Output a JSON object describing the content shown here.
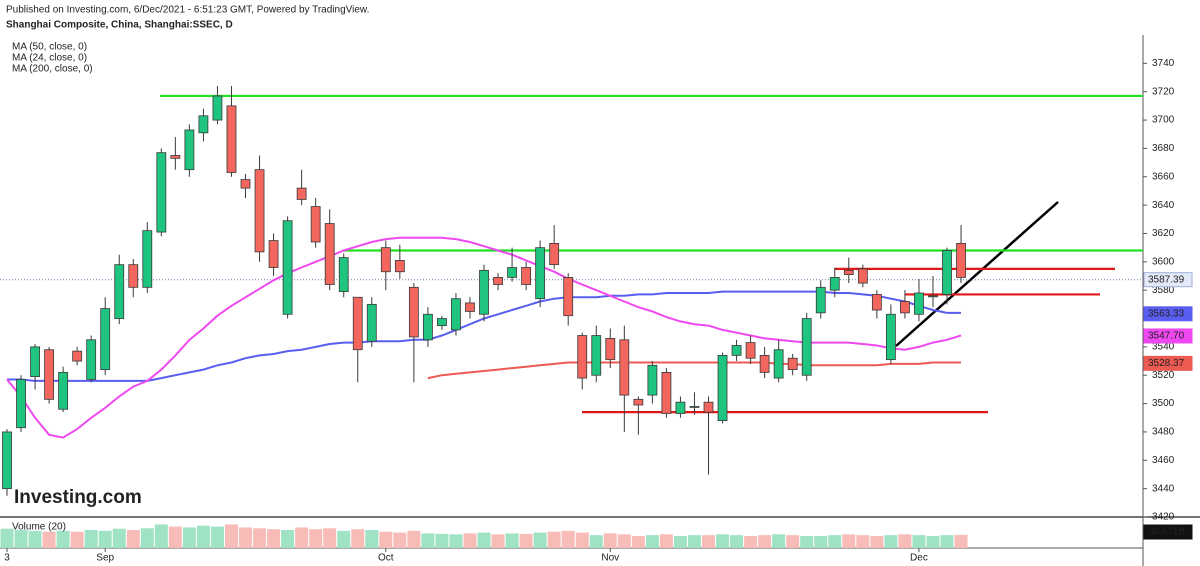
{
  "header": {
    "published": "Published on Investing.com, 6/Dec/2021 - 6:51:23 GMT, Powered by TradingView.",
    "instrument": "Shanghai Composite, China, Shanghai:SSEC, D"
  },
  "logo": "Investing.com",
  "chart_data": {
    "type": "candlestick",
    "categories": [
      "3",
      null,
      null,
      null,
      null,
      null,
      null,
      "Sep",
      null,
      null,
      null,
      null,
      null,
      null,
      null,
      null,
      null,
      null,
      null,
      null,
      null,
      null,
      null,
      null,
      null,
      null,
      null,
      "Oct",
      null,
      null,
      null,
      null,
      null,
      null,
      null,
      null,
      null,
      null,
      null,
      null,
      null,
      null,
      null,
      "Nov",
      null,
      null,
      null,
      null,
      null,
      null,
      null,
      null,
      null,
      null,
      null,
      null,
      null,
      null,
      null,
      null,
      null,
      null,
      null,
      null,
      null,
      "Dec",
      null,
      null,
      null
    ],
    "open": [
      3440,
      3483,
      3519,
      3538,
      3496,
      3537,
      3517,
      3524,
      3560,
      3598,
      3582,
      3621,
      3675,
      3665,
      3691,
      3700,
      3710,
      3658,
      3665,
      3615,
      3563,
      3652,
      3639,
      3627,
      3579,
      3575,
      3544,
      3610,
      3601,
      3582,
      3545,
      3555,
      3552,
      3571,
      3563,
      3589,
      3589,
      3596,
      3574,
      3613,
      3589,
      3548,
      3520,
      3546,
      3545,
      3503,
      3506,
      3522,
      3493,
      3498,
      3501,
      3488,
      3534,
      3543,
      3534,
      3518,
      3532,
      3520,
      3564,
      3580,
      3594,
      3595,
      3577,
      3531,
      3572,
      3563,
      3576,
      3577,
      3613
    ],
    "high": [
      3482,
      3520,
      3542,
      3540,
      3526,
      3540,
      3548,
      3575,
      3605,
      3602,
      3628,
      3680,
      3688,
      3697,
      3708,
      3724,
      3724,
      3662,
      3675,
      3620,
      3632,
      3665,
      3645,
      3637,
      3606,
      3575,
      3575,
      3615,
      3612,
      3585,
      3568,
      3562,
      3578,
      3575,
      3598,
      3592,
      3610,
      3600,
      3615,
      3626,
      3592,
      3550,
      3555,
      3553,
      3555,
      3505,
      3530,
      3525,
      3505,
      3508,
      3505,
      3536,
      3545,
      3548,
      3540,
      3545,
      3535,
      3564,
      3587,
      3596,
      3603,
      3598,
      3580,
      3570,
      3580,
      3588,
      3590,
      3610,
      3626
    ],
    "low": [
      3435,
      3480,
      3510,
      3500,
      3494,
      3527,
      3515,
      3520,
      3556,
      3575,
      3578,
      3618,
      3665,
      3660,
      3685,
      3697,
      3660,
      3645,
      3600,
      3590,
      3560,
      3640,
      3610,
      3580,
      3575,
      3515,
      3540,
      3580,
      3588,
      3515,
      3540,
      3552,
      3548,
      3560,
      3558,
      3580,
      3586,
      3580,
      3568,
      3595,
      3555,
      3510,
      3515,
      3525,
      3480,
      3478,
      3500,
      3490,
      3490,
      3492,
      3450,
      3486,
      3530,
      3528,
      3518,
      3515,
      3520,
      3516,
      3560,
      3575,
      3585,
      3582,
      3560,
      3528,
      3560,
      3558,
      3568,
      3570,
      3585
    ],
    "close": [
      3480,
      3517,
      3540,
      3503,
      3522,
      3530,
      3545,
      3567,
      3598,
      3582,
      3622,
      3677,
      3673,
      3693,
      3703,
      3717,
      3663,
      3652,
      3607,
      3596,
      3629,
      3644,
      3614,
      3584,
      3603,
      3538,
      3570,
      3593,
      3593,
      3547,
      3563,
      3560,
      3574,
      3565,
      3594,
      3584,
      3596,
      3584,
      3610,
      3598,
      3562,
      3518,
      3548,
      3531,
      3506,
      3499,
      3527,
      3493,
      3501,
      3498,
      3494,
      3534,
      3541,
      3532,
      3522,
      3538,
      3524,
      3560,
      3582,
      3589,
      3591,
      3585,
      3566,
      3563,
      3564,
      3578,
      3576,
      3608,
      3589
    ],
    "up_color": "#1fc47f",
    "down_color": "#f2665e",
    "last_price": {
      "value": 3587.39,
      "label": "3587.39"
    },
    "series": [
      {
        "name": "MA (50, close, 0)",
        "color": "#5a5ef0",
        "last": {
          "value": 3563.33,
          "label": "3563.33"
        },
        "values": [
          3517,
          3517,
          3516,
          3516,
          3516,
          3516,
          3516,
          3516,
          3516,
          3516,
          3516,
          3518,
          3520,
          3522,
          3524,
          3527,
          3529,
          3532,
          3534,
          3535,
          3537,
          3538,
          3540,
          3542,
          3543,
          3543,
          3544,
          3544,
          3544,
          3545,
          3545,
          3548,
          3552,
          3556,
          3560,
          3563,
          3566,
          3569,
          3572,
          3574,
          3575,
          3575,
          3575,
          3576,
          3576,
          3577,
          3577,
          3578,
          3578,
          3578,
          3578,
          3579,
          3579,
          3579,
          3579,
          3579,
          3579,
          3579,
          3579,
          3578,
          3578,
          3577,
          3576,
          3574,
          3572,
          3569,
          3566,
          3564,
          3564
        ]
      },
      {
        "name": "MA (24, close, 0)",
        "color": "#f048f0",
        "last": {
          "value": 3547.7,
          "label": "3547.70"
        },
        "values": [
          3517,
          3505,
          3490,
          3478,
          3476,
          3482,
          3490,
          3497,
          3505,
          3512,
          3516,
          3524,
          3534,
          3545,
          3553,
          3562,
          3569,
          3575,
          3581,
          3587,
          3592,
          3596,
          3600,
          3604,
          3608,
          3611,
          3614,
          3616,
          3617,
          3617,
          3617,
          3617,
          3616,
          3614,
          3611,
          3608,
          3605,
          3601,
          3597,
          3593,
          3588,
          3584,
          3580,
          3576,
          3572,
          3568,
          3565,
          3561,
          3558,
          3556,
          3555,
          3552,
          3550,
          3548,
          3546,
          3545,
          3544,
          3543,
          3543,
          3543,
          3543,
          3542,
          3541,
          3539,
          3538,
          3540,
          3543,
          3545,
          3548
        ]
      },
      {
        "name": "MA (200, close, 0)",
        "color": "#ec5a52",
        "last": {
          "value": 3528.37,
          "label": "3528.37"
        },
        "values": [
          null,
          null,
          null,
          null,
          null,
          null,
          null,
          null,
          null,
          null,
          null,
          null,
          null,
          null,
          null,
          null,
          null,
          null,
          null,
          null,
          null,
          null,
          null,
          null,
          null,
          null,
          null,
          null,
          null,
          null,
          3518,
          3520,
          3521,
          3522,
          3523,
          3524,
          3525,
          3526,
          3527,
          3528,
          3529,
          3529,
          3529,
          3529,
          3529,
          3529,
          3529,
          3529,
          3529,
          3529,
          3529,
          3529,
          3529,
          3529,
          3529,
          3528,
          3528,
          3527,
          3527,
          3527,
          3527,
          3527,
          3527,
          3528,
          3528,
          3528,
          3529,
          3529,
          3529
        ]
      }
    ],
    "levels": [
      {
        "value": 3717,
        "color": "#22e022"
      },
      {
        "value": 3608,
        "color": "#22e022"
      },
      {
        "value": 3595,
        "color": "#e01818"
      },
      {
        "value": 3577,
        "color": "#e01818"
      },
      {
        "value": 3494,
        "color": "#e01818"
      }
    ],
    "ylim": [
      3420,
      3760
    ],
    "yticks": [
      3420,
      3440,
      3460,
      3480,
      3500,
      3520,
      3540,
      3560,
      3580,
      3600,
      3620,
      3640,
      3660,
      3680,
      3700,
      3720,
      3740
    ],
    "volume": {
      "name": "Volume (20)",
      "ylim": [
        0,
        70
      ],
      "last": {
        "value": 30.671,
        "label": "30.671B"
      },
      "values": [
        45,
        42,
        40,
        38,
        40,
        38,
        42,
        40,
        45,
        42,
        46,
        55,
        50,
        48,
        52,
        50,
        55,
        48,
        46,
        44,
        42,
        48,
        44,
        46,
        40,
        44,
        42,
        38,
        36,
        40,
        34,
        33,
        32,
        34,
        36,
        32,
        34,
        33,
        36,
        38,
        40,
        36,
        30,
        34,
        32,
        28,
        30,
        32,
        28,
        30,
        30,
        32,
        30,
        28,
        30,
        32,
        30,
        28,
        28,
        30,
        32,
        30,
        28,
        30,
        32,
        30,
        28,
        30,
        30.671
      ]
    }
  }
}
